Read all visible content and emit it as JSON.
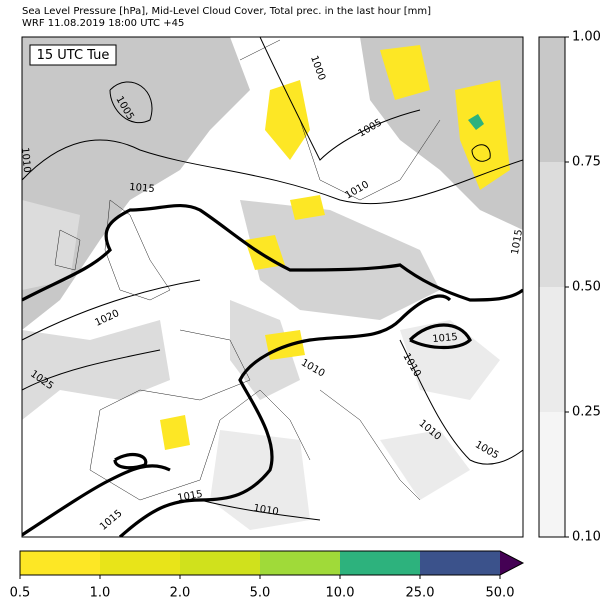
{
  "header": {
    "title": "Sea Level Pressure [hPa], Mid-Level Cloud Cover, Total prec. in the last hour [mm]",
    "subtitle": "WRF 11.08.2019 18:00 UTC +45"
  },
  "map": {
    "time_label": "15 UTC Tue",
    "isobar_labels": [
      1000,
      1005,
      1005,
      1010,
      1015,
      1010,
      1015,
      1020,
      1025,
      1015,
      1010,
      1010,
      1010,
      1005,
      1015,
      1010,
      1015
    ]
  },
  "cloud_colorbar": {
    "colors": [
      "#f5f5f5",
      "#ebebeb",
      "#dcdcdc",
      "#c8c8c8"
    ],
    "ticks": [
      {
        "value": 0.1,
        "label": "0.10"
      },
      {
        "value": 0.25,
        "label": "0.25"
      },
      {
        "value": 0.5,
        "label": "0.50"
      },
      {
        "value": 0.75,
        "label": "0.75"
      },
      {
        "value": 1,
        "label": "1.00"
      }
    ]
  },
  "precip_colorbar": {
    "colors": [
      "#fde725",
      "#e8e419",
      "#d0e11c",
      "#a0da39",
      "#2db27d",
      "#3b528b"
    ],
    "extend_color": "#440154",
    "ticks": [
      0.5,
      {
        "value": 1,
        "label": "1.0"
      },
      {
        "value": 2,
        "label": "2.0"
      },
      {
        "value": 5,
        "label": "5.0"
      },
      {
        "value": 10,
        "label": "10.0"
      },
      {
        "value": 25,
        "label": "25.0"
      },
      {
        "value": 50,
        "label": "50.0"
      }
    ]
  }
}
